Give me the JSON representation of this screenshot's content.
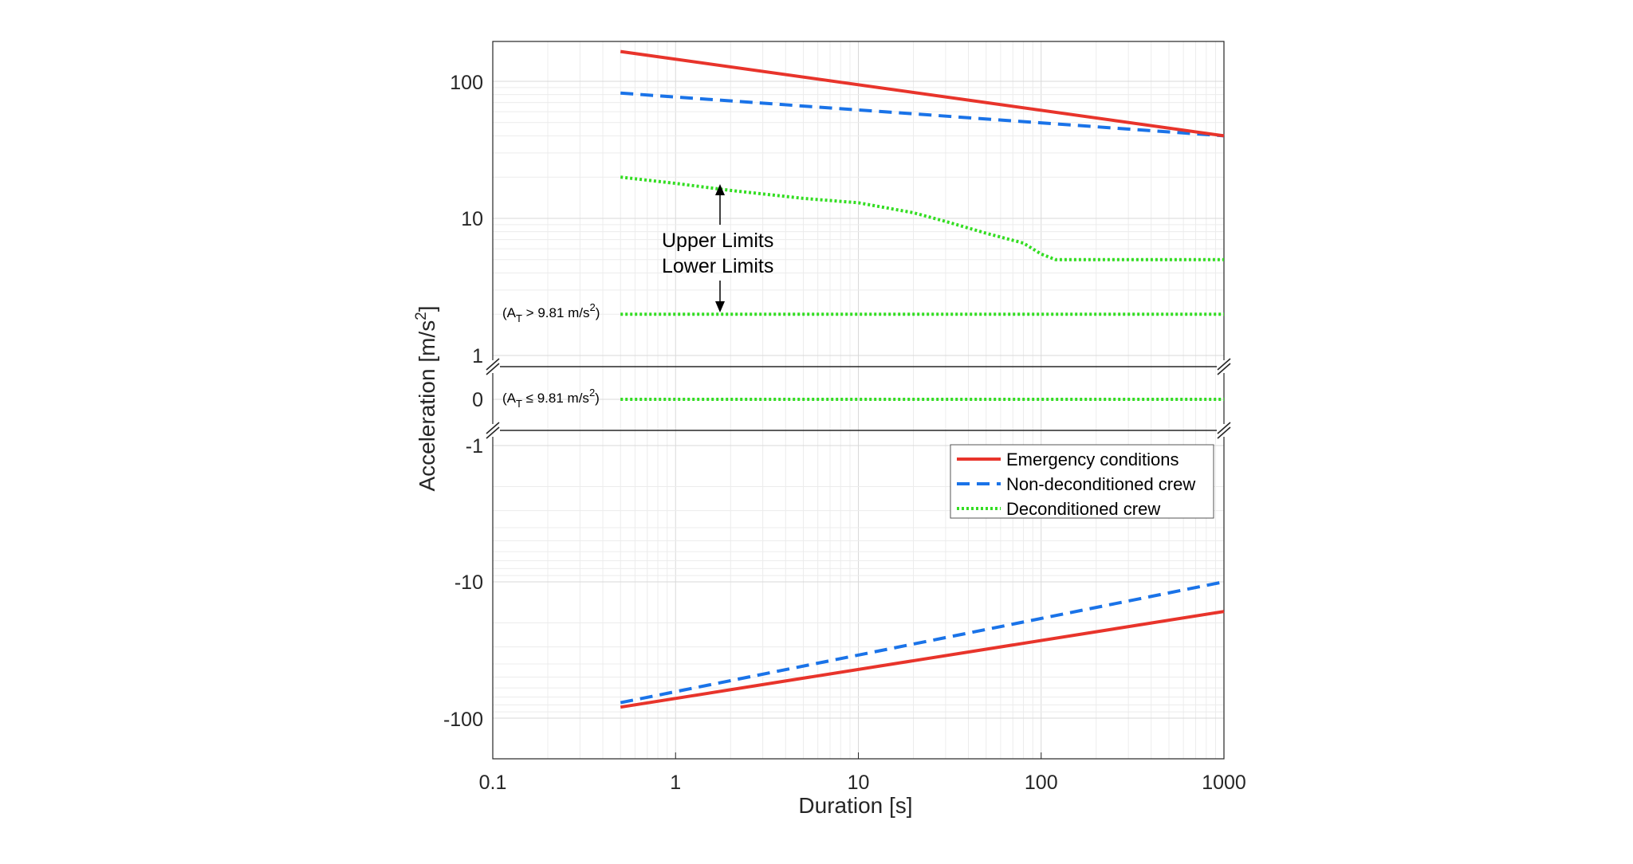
{
  "chart_data": {
    "type": "line",
    "xlabel": "Duration [s]",
    "ylabel": "Acceleration [m/s",
    "ylabel_sup": "2",
    "ylabel_close": "]",
    "x_scale": "log",
    "xlim": [
      0.1,
      1000
    ],
    "x_ticks": [
      "0.1",
      "1",
      "10",
      "100",
      "1000"
    ],
    "grid": true,
    "legend_position": "inside right, lower panel",
    "panels": {
      "upper": {
        "scale": "log",
        "ylim": [
          1,
          200
        ],
        "y_ticks": [
          "1",
          "10",
          "100"
        ]
      },
      "middle": {
        "value": 0,
        "y_ticks": [
          "0"
        ]
      },
      "lower": {
        "scale": "negative log",
        "ylim": [
          -1,
          -200
        ],
        "y_ticks": [
          "-1",
          "-10",
          "-100"
        ]
      }
    },
    "series": [
      {
        "name": "Emergency conditions",
        "color": "#e8342b",
        "style": "solid",
        "upper": {
          "x": [
            0.5,
            1000
          ],
          "y": [
            165,
            40
          ]
        },
        "lower": {
          "x": [
            0.5,
            1000
          ],
          "y": [
            -83,
            -16.5
          ]
        }
      },
      {
        "name": "Non-deconditioned crew",
        "color": "#1a73e8",
        "style": "dashed",
        "upper": {
          "x": [
            0.5,
            1000
          ],
          "y": [
            82,
            40
          ]
        },
        "lower": {
          "x": [
            0.5,
            1000
          ],
          "y": [
            -77,
            -10
          ]
        }
      },
      {
        "name": "Deconditioned crew",
        "color": "#33dd22",
        "style": "dotted",
        "upper_limit": {
          "x": [
            0.5,
            1,
            2,
            5,
            10,
            20,
            30,
            50,
            80,
            100,
            120,
            1000
          ],
          "y": [
            20,
            18,
            16,
            14,
            13,
            11,
            9.5,
            7.8,
            6.6,
            5.5,
            5,
            5
          ]
        },
        "lower_limit_at_gt_g": {
          "x": [
            0.5,
            1000
          ],
          "y": [
            2,
            2
          ]
        },
        "lower_limit_at_le_g": {
          "x": [
            0.5,
            1000
          ],
          "y": [
            0,
            0
          ]
        }
      }
    ],
    "annotations": {
      "upper_limits": "Upper Limits",
      "lower_limits": "Lower Limits",
      "cond_gt_a": "(A",
      "cond_gt_sub": "T",
      "cond_gt_b": " > 9.81 m/s",
      "cond_gt_sup": "2",
      "cond_gt_c": ")",
      "cond_le_a": "(A",
      "cond_le_sub": "T",
      "cond_le_b": " ≤ 9.81 m/s",
      "cond_le_sup": "2",
      "cond_le_c": ")"
    }
  }
}
